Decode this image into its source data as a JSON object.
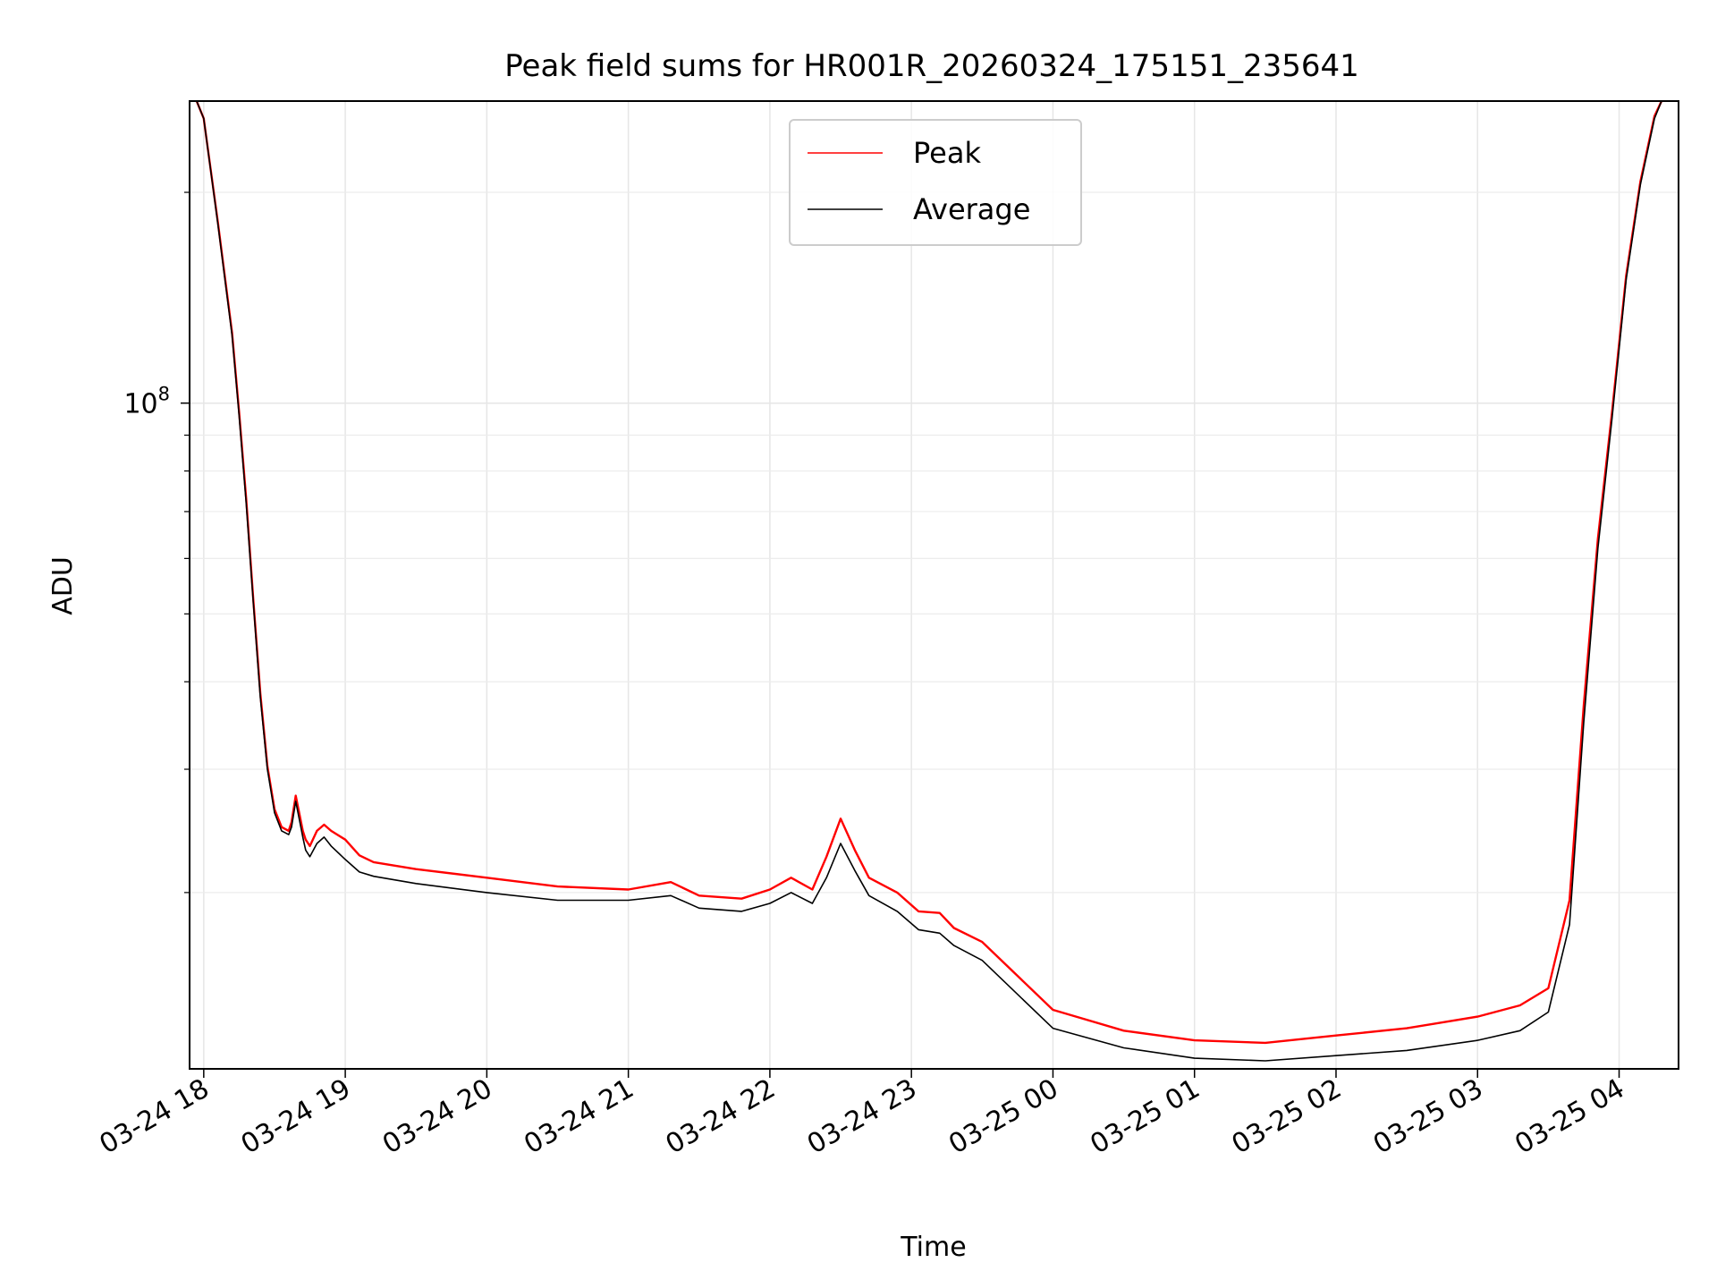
{
  "chart_data": {
    "type": "line",
    "title": "Peak field sums for HR001R_20260324_175151_235641",
    "xlabel": "Time",
    "ylabel": "ADU",
    "y_scale": "log",
    "ylim": [
      11200000,
      270000000
    ],
    "xlim_hours_from_1800": [
      -0.1,
      10.42
    ],
    "grid": true,
    "legend_location": "upper center",
    "x_ticks": [
      {
        "hours": 0,
        "label": "03-24 18"
      },
      {
        "hours": 1,
        "label": "03-24 19"
      },
      {
        "hours": 2,
        "label": "03-24 20"
      },
      {
        "hours": 3,
        "label": "03-24 21"
      },
      {
        "hours": 4,
        "label": "03-24 22"
      },
      {
        "hours": 5,
        "label": "03-24 23"
      },
      {
        "hours": 6,
        "label": "03-25 00"
      },
      {
        "hours": 7,
        "label": "03-25 01"
      },
      {
        "hours": 8,
        "label": "03-25 02"
      },
      {
        "hours": 9,
        "label": "03-25 03"
      },
      {
        "hours": 10,
        "label": "03-25 04"
      }
    ],
    "y_major_ticks": [
      {
        "value": 100000000,
        "base": "10",
        "exp": "8"
      }
    ],
    "y_minor_ticks": [
      20000000,
      30000000,
      40000000,
      50000000,
      60000000,
      70000000,
      80000000,
      90000000,
      200000000
    ],
    "series": [
      {
        "name": "Average",
        "color": "#000000",
        "x_hours": [
          -0.05,
          0.0,
          0.1,
          0.2,
          0.25,
          0.3,
          0.35,
          0.4,
          0.45,
          0.5,
          0.55,
          0.6,
          0.62,
          0.65,
          0.7,
          0.72,
          0.75,
          0.8,
          0.85,
          0.9,
          1.0,
          1.1,
          1.2,
          1.5,
          2.0,
          2.5,
          3.0,
          3.3,
          3.5,
          3.8,
          4.0,
          4.15,
          4.3,
          4.4,
          4.5,
          4.6,
          4.7,
          4.9,
          5.05,
          5.2,
          5.3,
          5.5,
          6.0,
          6.5,
          7.0,
          7.5,
          8.0,
          8.5,
          9.0,
          9.3,
          9.5,
          9.65,
          9.75,
          9.85,
          9.95,
          10.05,
          10.15,
          10.25,
          10.3
        ],
        "y": [
          270000000,
          255000000,
          180000000,
          125000000,
          96000000,
          72000000,
          52000000,
          38000000,
          30000000,
          26000000,
          24500000,
          24200000,
          24800000,
          27000000,
          24000000,
          23000000,
          22500000,
          23500000,
          24000000,
          23300000,
          22300000,
          21400000,
          21100000,
          20600000,
          20000000,
          19500000,
          19500000,
          19800000,
          19000000,
          18800000,
          19300000,
          20000000,
          19300000,
          21000000,
          23500000,
          21500000,
          19800000,
          18800000,
          17700000,
          17500000,
          16800000,
          16000000,
          12800000,
          12000000,
          11600000,
          11500000,
          11700000,
          11900000,
          12300000,
          12700000,
          13500000,
          18000000,
          35000000,
          62000000,
          95000000,
          150000000,
          205000000,
          255000000,
          270000000
        ]
      },
      {
        "name": "Peak",
        "color": "#ff0000",
        "x_hours": [
          -0.05,
          0.0,
          0.1,
          0.2,
          0.25,
          0.3,
          0.35,
          0.4,
          0.45,
          0.5,
          0.55,
          0.6,
          0.62,
          0.65,
          0.7,
          0.72,
          0.75,
          0.8,
          0.85,
          0.9,
          1.0,
          1.1,
          1.2,
          1.5,
          2.0,
          2.5,
          3.0,
          3.3,
          3.5,
          3.8,
          4.0,
          4.15,
          4.3,
          4.4,
          4.5,
          4.6,
          4.7,
          4.9,
          5.05,
          5.2,
          5.3,
          5.5,
          6.0,
          6.5,
          7.0,
          7.5,
          8.0,
          8.5,
          9.0,
          9.3,
          9.5,
          9.65,
          9.75,
          9.85,
          9.95,
          10.05,
          10.15,
          10.25,
          10.3
        ],
        "y": [
          270000000,
          255000000,
          181000000,
          126000000,
          97000000,
          73000000,
          52500000,
          38500000,
          30300000,
          26300000,
          24800000,
          24500000,
          25200000,
          27500000,
          24500000,
          23800000,
          23300000,
          24500000,
          25000000,
          24500000,
          23800000,
          22600000,
          22100000,
          21600000,
          21000000,
          20400000,
          20200000,
          20700000,
          19800000,
          19600000,
          20200000,
          21000000,
          20200000,
          22500000,
          25500000,
          23000000,
          21000000,
          20000000,
          18800000,
          18700000,
          17800000,
          17000000,
          13600000,
          12700000,
          12300000,
          12200000,
          12500000,
          12800000,
          13300000,
          13800000,
          14600000,
          19500000,
          37000000,
          64000000,
          97000000,
          152000000,
          207000000,
          257000000,
          270000000
        ]
      }
    ]
  }
}
